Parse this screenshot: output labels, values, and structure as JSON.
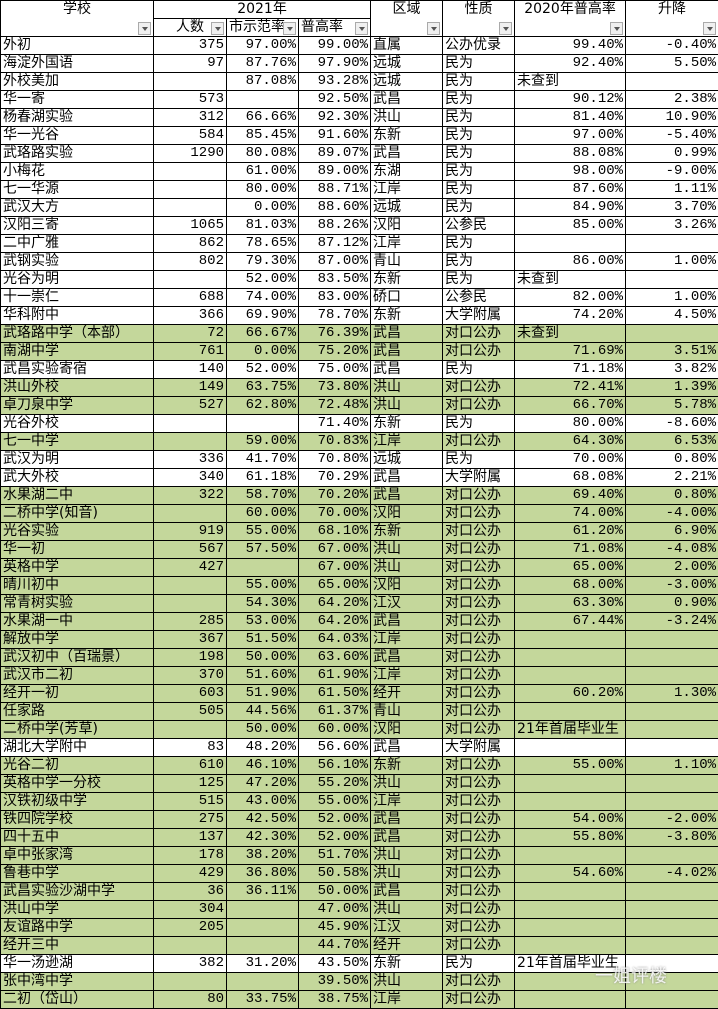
{
  "header": {
    "school": "学校",
    "year2021": "2021年",
    "count": "人数",
    "demo_rate": "市示范率",
    "high_rate": "普高率",
    "district": "区域",
    "type": "性质",
    "rate2020": "2020年普高率",
    "change": "升降"
  },
  "colors": {
    "highlight": "#c4d79b",
    "plain": "#ffffff"
  },
  "rows": [
    {
      "school": "外初",
      "count": "375",
      "demo": "97.00%",
      "high": "99.00%",
      "district": "直属",
      "type": "公办优录",
      "r2020": "99.40%",
      "change": "-0.40%",
      "green": false
    },
    {
      "school": "海淀外国语",
      "count": "97",
      "demo": "87.76%",
      "high": "97.90%",
      "district": "远城",
      "type": "民为",
      "r2020": "92.40%",
      "change": "5.50%",
      "green": false
    },
    {
      "school": "外校美加",
      "count": "",
      "demo": "87.08%",
      "high": "93.28%",
      "district": "远城",
      "type": "民为",
      "r2020": "未查到",
      "change": "",
      "green": false
    },
    {
      "school": "华一寄",
      "count": "573",
      "demo": "",
      "high": "92.50%",
      "district": "武昌",
      "type": "民为",
      "r2020": "90.12%",
      "change": "2.38%",
      "green": false
    },
    {
      "school": "杨春湖实验",
      "count": "312",
      "demo": "66.66%",
      "high": "92.30%",
      "district": "洪山",
      "type": "民为",
      "r2020": "81.40%",
      "change": "10.90%",
      "green": false
    },
    {
      "school": "华一光谷",
      "count": "584",
      "demo": "85.45%",
      "high": "91.60%",
      "district": "东新",
      "type": "民为",
      "r2020": "97.00%",
      "change": "-5.40%",
      "green": false
    },
    {
      "school": "武珞路实验",
      "count": "1290",
      "demo": "80.08%",
      "high": "89.07%",
      "district": "武昌",
      "type": "民为",
      "r2020": "88.08%",
      "change": "0.99%",
      "green": false
    },
    {
      "school": "小梅花",
      "count": "",
      "demo": "61.00%",
      "high": "89.00%",
      "district": "东湖",
      "type": "民为",
      "r2020": "98.00%",
      "change": "-9.00%",
      "green": false
    },
    {
      "school": "七一华源",
      "count": "",
      "demo": "80.00%",
      "high": "88.71%",
      "district": "江岸",
      "type": "民为",
      "r2020": "87.60%",
      "change": "1.11%",
      "green": false
    },
    {
      "school": "武汉大方",
      "count": "",
      "demo": "0.00%",
      "high": "88.60%",
      "district": "远城",
      "type": "民为",
      "r2020": "84.90%",
      "change": "3.70%",
      "green": false
    },
    {
      "school": "汉阳三寄",
      "count": "1065",
      "demo": "81.03%",
      "high": "88.26%",
      "district": "汉阳",
      "type": "公参民",
      "r2020": "85.00%",
      "change": "3.26%",
      "green": false
    },
    {
      "school": "二中广雅",
      "count": "862",
      "demo": "78.65%",
      "high": "87.12%",
      "district": "江岸",
      "type": "民为",
      "r2020": "",
      "change": "",
      "green": false
    },
    {
      "school": "武钢实验",
      "count": "802",
      "demo": "79.30%",
      "high": "87.00%",
      "district": "青山",
      "type": "民为",
      "r2020": "86.00%",
      "change": "1.00%",
      "green": false
    },
    {
      "school": "光谷为明",
      "count": "",
      "demo": "52.00%",
      "high": "83.50%",
      "district": "东新",
      "type": "民为",
      "r2020": "未查到",
      "change": "",
      "green": false
    },
    {
      "school": "十一崇仁",
      "count": "688",
      "demo": "74.00%",
      "high": "83.00%",
      "district": "硚口",
      "type": "公参民",
      "r2020": "82.00%",
      "change": "1.00%",
      "green": false
    },
    {
      "school": "华科附中",
      "count": "366",
      "demo": "69.90%",
      "high": "78.70%",
      "district": "东新",
      "type": "大学附属",
      "r2020": "74.20%",
      "change": "4.50%",
      "green": false
    },
    {
      "school": "武珞路中学（本部）",
      "count": "72",
      "demo": "66.67%",
      "high": "76.39%",
      "district": "武昌",
      "type": "对口公办",
      "r2020": "未查到",
      "change": "",
      "green": true
    },
    {
      "school": "南湖中学",
      "count": "761",
      "demo": "0.00%",
      "high": "75.20%",
      "district": "武昌",
      "type": "对口公办",
      "r2020": "71.69%",
      "change": "3.51%",
      "green": true
    },
    {
      "school": "武昌实验寄宿",
      "count": "140",
      "demo": "52.00%",
      "high": "75.00%",
      "district": "武昌",
      "type": "民为",
      "r2020": "71.18%",
      "change": "3.82%",
      "green": false
    },
    {
      "school": "洪山外校",
      "count": "149",
      "demo": "63.75%",
      "high": "73.80%",
      "district": "洪山",
      "type": "对口公办",
      "r2020": "72.41%",
      "change": "1.39%",
      "green": true
    },
    {
      "school": "卓刀泉中学",
      "count": "527",
      "demo": "62.80%",
      "high": "72.48%",
      "district": "洪山",
      "type": "对口公办",
      "r2020": "66.70%",
      "change": "5.78%",
      "green": true
    },
    {
      "school": "光谷外校",
      "count": "",
      "demo": "",
      "high": "71.40%",
      "district": "东新",
      "type": "民为",
      "r2020": "80.00%",
      "change": "-8.60%",
      "green": false
    },
    {
      "school": "七一中学",
      "count": "",
      "demo": "59.00%",
      "high": "70.83%",
      "district": "江岸",
      "type": "对口公办",
      "r2020": "64.30%",
      "change": "6.53%",
      "green": true
    },
    {
      "school": "武汉为明",
      "count": "336",
      "demo": "41.70%",
      "high": "70.80%",
      "district": "远城",
      "type": "民为",
      "r2020": "70.00%",
      "change": "0.80%",
      "green": false
    },
    {
      "school": "武大外校",
      "count": "340",
      "demo": "61.18%",
      "high": "70.29%",
      "district": "武昌",
      "type": "大学附属",
      "r2020": "68.08%",
      "change": "2.21%",
      "green": false
    },
    {
      "school": "水果湖二中",
      "count": "322",
      "demo": "58.70%",
      "high": "70.20%",
      "district": "武昌",
      "type": "对口公办",
      "r2020": "69.40%",
      "change": "0.80%",
      "green": true
    },
    {
      "school": "二桥中学(知音)",
      "count": "",
      "demo": "60.00%",
      "high": "70.00%",
      "district": "汉阳",
      "type": "对口公办",
      "r2020": "74.00%",
      "change": "-4.00%",
      "green": true
    },
    {
      "school": "光谷实验",
      "count": "919",
      "demo": "55.00%",
      "high": "68.10%",
      "district": "东新",
      "type": "对口公办",
      "r2020": "61.20%",
      "change": "6.90%",
      "green": true
    },
    {
      "school": "华一初",
      "count": "567",
      "demo": "57.50%",
      "high": "67.00%",
      "district": "洪山",
      "type": "对口公办",
      "r2020": "71.08%",
      "change": "-4.08%",
      "green": true
    },
    {
      "school": "英格中学",
      "count": "427",
      "demo": "",
      "high": "67.00%",
      "district": "洪山",
      "type": "对口公办",
      "r2020": "65.00%",
      "change": "2.00%",
      "green": true
    },
    {
      "school": "晴川初中",
      "count": "",
      "demo": "55.00%",
      "high": "65.00%",
      "district": "汉阳",
      "type": "对口公办",
      "r2020": "68.00%",
      "change": "-3.00%",
      "green": true
    },
    {
      "school": "常青树实验",
      "count": "",
      "demo": "54.30%",
      "high": "64.20%",
      "district": "江汉",
      "type": "对口公办",
      "r2020": "63.30%",
      "change": "0.90%",
      "green": true
    },
    {
      "school": "水果湖一中",
      "count": "285",
      "demo": "53.00%",
      "high": "64.20%",
      "district": "武昌",
      "type": "对口公办",
      "r2020": "67.44%",
      "change": "-3.24%",
      "green": true
    },
    {
      "school": "解放中学",
      "count": "367",
      "demo": "51.50%",
      "high": "64.03%",
      "district": "江岸",
      "type": "对口公办",
      "r2020": "",
      "change": "",
      "green": true
    },
    {
      "school": "武汉初中（百瑞景）",
      "count": "198",
      "demo": "50.00%",
      "high": "63.60%",
      "district": "武昌",
      "type": "对口公办",
      "r2020": "",
      "change": "",
      "green": true
    },
    {
      "school": "武汉市二初",
      "count": "370",
      "demo": "51.60%",
      "high": "61.90%",
      "district": "江岸",
      "type": "对口公办",
      "r2020": "",
      "change": "",
      "green": true
    },
    {
      "school": "经开一初",
      "count": "603",
      "demo": "51.90%",
      "high": "61.50%",
      "district": "经开",
      "type": "对口公办",
      "r2020": "60.20%",
      "change": "1.30%",
      "green": true
    },
    {
      "school": "任家路",
      "count": "505",
      "demo": "44.56%",
      "high": "61.37%",
      "district": "青山",
      "type": "对口公办",
      "r2020": "",
      "change": "",
      "green": true
    },
    {
      "school": "二桥中学(芳草)",
      "count": "",
      "demo": "50.00%",
      "high": "60.00%",
      "district": "汉阳",
      "type": "对口公办",
      "r2020": "21年首届毕业生",
      "change": "",
      "green": true
    },
    {
      "school": "湖北大学附中",
      "count": "83",
      "demo": "48.20%",
      "high": "56.60%",
      "district": "武昌",
      "type": "大学附属",
      "r2020": "",
      "change": "",
      "green": false
    },
    {
      "school": "光谷二初",
      "count": "610",
      "demo": "46.10%",
      "high": "56.10%",
      "district": "东新",
      "type": "对口公办",
      "r2020": "55.00%",
      "change": "1.10%",
      "green": true
    },
    {
      "school": "英格中学一分校",
      "count": "125",
      "demo": "47.20%",
      "high": "55.20%",
      "district": "洪山",
      "type": "对口公办",
      "r2020": "",
      "change": "",
      "green": true
    },
    {
      "school": "汉铁初级中学",
      "count": "515",
      "demo": "43.00%",
      "high": "55.00%",
      "district": "江岸",
      "type": "对口公办",
      "r2020": "",
      "change": "",
      "green": true
    },
    {
      "school": "铁四院学校",
      "count": "275",
      "demo": "42.50%",
      "high": "52.00%",
      "district": "武昌",
      "type": "对口公办",
      "r2020": "54.00%",
      "change": "-2.00%",
      "green": true
    },
    {
      "school": "四十五中",
      "count": "137",
      "demo": "42.30%",
      "high": "52.00%",
      "district": "武昌",
      "type": "对口公办",
      "r2020": "55.80%",
      "change": "-3.80%",
      "green": true
    },
    {
      "school": "卓中张家湾",
      "count": "178",
      "demo": "38.20%",
      "high": "51.70%",
      "district": "洪山",
      "type": "对口公办",
      "r2020": "",
      "change": "",
      "green": true
    },
    {
      "school": "鲁巷中学",
      "count": "429",
      "demo": "36.80%",
      "high": "50.58%",
      "district": "洪山",
      "type": "对口公办",
      "r2020": "54.60%",
      "change": "-4.02%",
      "green": true
    },
    {
      "school": "武昌实验沙湖中学",
      "count": "36",
      "demo": "36.11%",
      "high": "50.00%",
      "district": "武昌",
      "type": "对口公办",
      "r2020": "",
      "change": "",
      "green": true
    },
    {
      "school": "洪山中学",
      "count": "304",
      "demo": "",
      "high": "47.00%",
      "district": "洪山",
      "type": "对口公办",
      "r2020": "",
      "change": "",
      "green": true
    },
    {
      "school": "友谊路中学",
      "count": "205",
      "demo": "",
      "high": "45.90%",
      "district": "江汉",
      "type": "对口公办",
      "r2020": "",
      "change": "",
      "green": true
    },
    {
      "school": "经开三中",
      "count": "",
      "demo": "",
      "high": "44.70%",
      "district": "经开",
      "type": "对口公办",
      "r2020": "",
      "change": "",
      "green": true
    },
    {
      "school": "华一汤逊湖",
      "count": "382",
      "demo": "31.20%",
      "high": "43.50%",
      "district": "东新",
      "type": "民为",
      "r2020": "21年首届毕业生",
      "change": "",
      "green": false
    },
    {
      "school": "张中湾中学",
      "count": "",
      "demo": "",
      "high": "39.50%",
      "district": "洪山",
      "type": "对口公办",
      "r2020": "",
      "change": "",
      "green": true
    },
    {
      "school": "二初（岱山）",
      "count": "80",
      "demo": "33.75%",
      "high": "38.75%",
      "district": "江岸",
      "type": "对口公办",
      "r2020": "",
      "change": "",
      "green": true
    }
  ],
  "watermark": "一姐评楼"
}
